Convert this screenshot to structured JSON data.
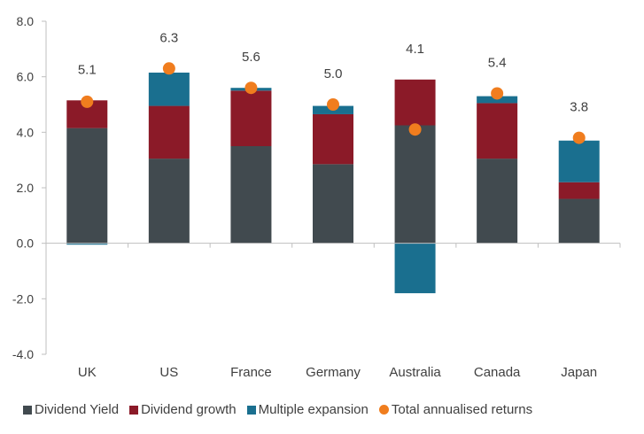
{
  "chart_data": {
    "type": "bar",
    "stacked": true,
    "categories": [
      "UK",
      "US",
      "France",
      "Germany",
      "Australia",
      "Canada",
      "Japan"
    ],
    "ylim": [
      -4.0,
      8.0
    ],
    "yticks": [
      "8.0",
      "6.0",
      "4.0",
      "2.0",
      "0.0",
      "-2.0",
      "-4.0"
    ],
    "ytick_values": [
      8,
      6,
      4,
      2,
      0,
      -2,
      -4
    ],
    "grid": false,
    "legend_position": "bottom",
    "series": [
      {
        "name": "Dividend Yield",
        "color": "#414a4f",
        "values": [
          4.15,
          3.05,
          3.5,
          2.85,
          4.25,
          3.05,
          1.6
        ]
      },
      {
        "name": "Dividend growth",
        "color": "#8b1a28",
        "values": [
          1.0,
          1.9,
          2.0,
          1.8,
          1.65,
          2.0,
          0.6
        ]
      },
      {
        "name": "Multiple expansion",
        "color": "#1a6f8f",
        "values": [
          -0.05,
          1.2,
          0.1,
          0.3,
          -1.8,
          0.25,
          1.5
        ]
      }
    ],
    "total": {
      "name": "Total annualised returns",
      "color": "#f07d1e",
      "values": [
        5.1,
        6.3,
        5.6,
        5.0,
        4.1,
        5.4,
        3.8
      ],
      "labels": [
        "5.1",
        "6.3",
        "5.6",
        "5.0",
        "4.1",
        "5.4",
        "3.8"
      ]
    }
  }
}
